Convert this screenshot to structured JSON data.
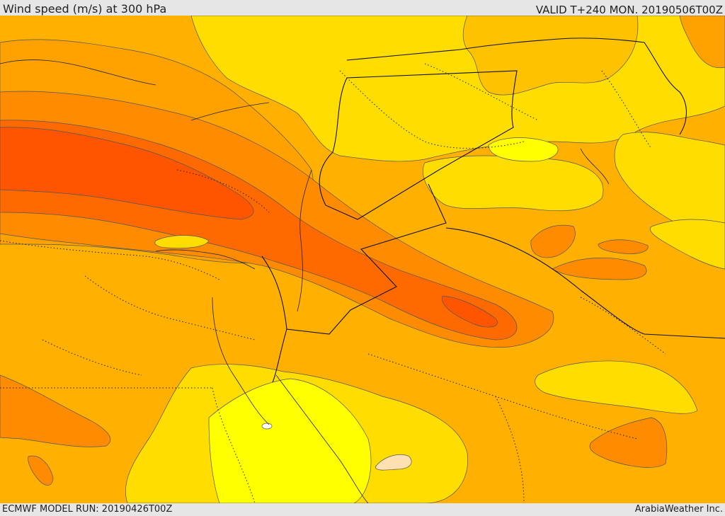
{
  "header": {
    "title": "Wind speed (m/s) at 300 hPa",
    "valid": "VALID T+240 MON. 20190506T00Z"
  },
  "footer": {
    "model_run": "ECMWF MODEL RUN: 20190426T00Z",
    "credit": "ArabiaWeather Inc."
  },
  "colors": {
    "background": "#ffb000",
    "light_yellow": "#ffff00",
    "yellow": "#ffdd00",
    "gold": "#ffc200",
    "light_orange": "#ffa200",
    "orange": "#ff8c00",
    "dark_orange": "#ff6a00",
    "red_orange": "#ff5500",
    "pale_spot": "#ffe0b0",
    "contour": "#555555",
    "border": "#111111"
  }
}
